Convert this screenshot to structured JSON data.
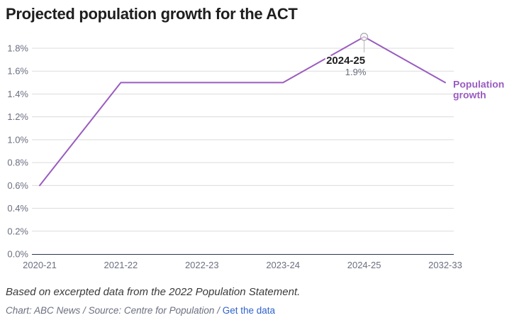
{
  "title": "Projected population growth for the ACT",
  "chart_data": {
    "type": "line",
    "title": "Projected population growth for the ACT",
    "categories": [
      "2020-21",
      "2021-22",
      "2022-23",
      "2023-24",
      "2024-25",
      "2032-33"
    ],
    "series": [
      {
        "name": "Population growth",
        "label_lines": [
          "Population",
          "growth"
        ],
        "color": "#9a5cc0",
        "values": [
          0.6,
          1.5,
          1.5,
          1.5,
          1.9,
          1.5
        ]
      }
    ],
    "yticks": [
      0.0,
      0.2,
      0.4,
      0.6,
      0.8,
      1.0,
      1.2,
      1.4,
      1.6,
      1.8
    ],
    "ytick_labels": [
      "0.0%",
      "0.2%",
      "0.4%",
      "0.6%",
      "0.8%",
      "1.0%",
      "1.2%",
      "1.4%",
      "1.6%",
      "1.8%"
    ],
    "ylim": [
      0,
      1.8
    ],
    "xlabel": "",
    "ylabel": "",
    "grid": true,
    "annotation": {
      "index": 4,
      "period": "2024-25",
      "value_label": "1.9%"
    }
  },
  "note": "Based on excerpted data from the 2022 Population Statement.",
  "credit": {
    "chart_by": "Chart: ABC News",
    "separator1": "/",
    "source": "Source: Centre for Population",
    "separator2": "/",
    "link_label": "Get the data"
  },
  "colors": {
    "line": "#9a5cc0",
    "grid": "#dcdcdc",
    "axis": "#2a3550",
    "tick_text": "#6b6f80",
    "link": "#2f63c9"
  }
}
